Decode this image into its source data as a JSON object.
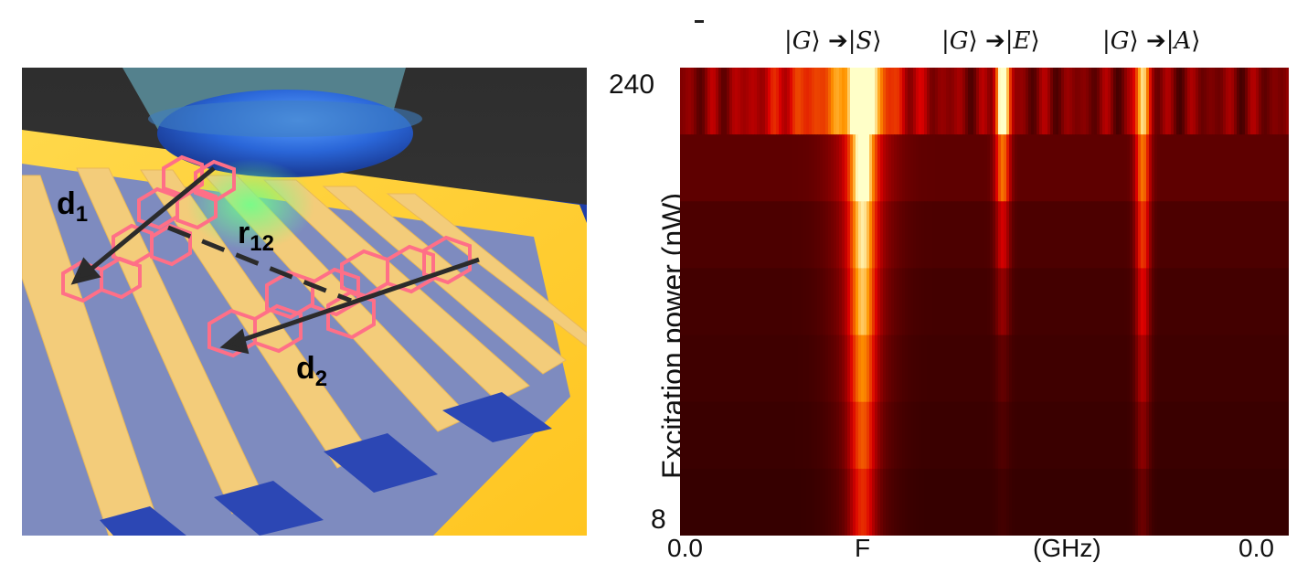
{
  "figure": {
    "left_panel": {
      "label_d1_base": "d",
      "label_d1_sub": "1",
      "label_d2_base": "d",
      "label_d2_sub": "2",
      "label_r12_base": "r",
      "label_r12_sub": "12"
    },
    "right_panel": {
      "transitions": [
        {
          "from": "G",
          "to": "S"
        },
        {
          "from": "G",
          "to": "E"
        },
        {
          "from": "G",
          "to": "A"
        }
      ],
      "ylabel": "Excitation power (nW)",
      "ytick_top": "240",
      "ytick_bottom": "8",
      "bottom_partial_left": "0.0",
      "bottom_partial_mid": "F",
      "bottom_partial_unit": "(GHz)",
      "bottom_partial_right": "0.0"
    }
  },
  "chart_data": {
    "type": "heatmap",
    "ylabel": "Excitation power (nW)",
    "yticks": [
      "8",
      "240"
    ],
    "rows": 7,
    "peaks": [
      "|G⟩→|S⟩",
      "|G⟩→|E⟩",
      "|G⟩→|A⟩"
    ],
    "colormap": "hot"
  }
}
